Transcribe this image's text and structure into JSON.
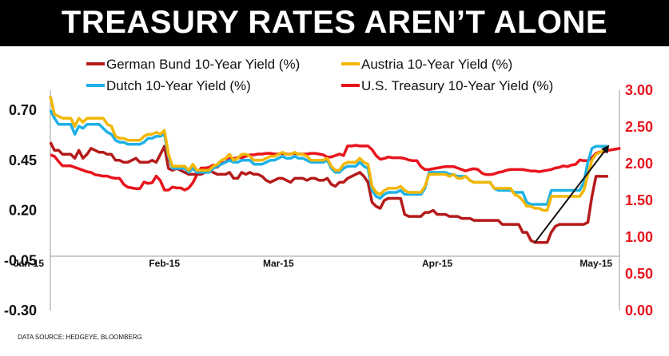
{
  "chart_data": {
    "type": "line",
    "title": "TREASURY RATES AREN’T ALONE",
    "source": "DATA SOURCE: HEDGEYE, BLOOMBERG",
    "x_ticks": [
      "Jan-15",
      "Feb-15",
      "Mar-15",
      "Apr-15",
      "May-15"
    ],
    "y_left": {
      "min": -0.3,
      "max": 0.8,
      "ticks": [
        "0.70",
        "0.45",
        "0.20",
        "-0.05",
        "-0.30"
      ]
    },
    "y_right": {
      "min": 0.0,
      "max": 3.0,
      "ticks": [
        "3.00",
        "2.50",
        "2.00",
        "1.50",
        "1.00",
        "0.50",
        "0.00"
      ]
    },
    "colors": {
      "bund": "#b51a1a",
      "austria": "#f2b705",
      "dutch": "#1fb1e6",
      "us": "#e8141c",
      "title_bg": "#000000",
      "right_axis": "#e8141c"
    },
    "series": [
      {
        "name": "German Bund 10-Year Yield (%)",
        "axis": "left",
        "color": "#b51a1a",
        "values": [
          0.54,
          0.5,
          0.5,
          0.48,
          0.48,
          0.48,
          0.46,
          0.5,
          0.46,
          0.48,
          0.51,
          0.5,
          0.49,
          0.49,
          0.48,
          0.48,
          0.45,
          0.45,
          0.44,
          0.44,
          0.45,
          0.46,
          0.44,
          0.44,
          0.44,
          0.45,
          0.44,
          0.48,
          0.52,
          0.41,
          0.4,
          0.41,
          0.4,
          0.39,
          0.38,
          0.38,
          0.38,
          0.38,
          0.39,
          0.4,
          0.39,
          0.38,
          0.38,
          0.38,
          0.39,
          0.36,
          0.36,
          0.39,
          0.38,
          0.39,
          0.38,
          0.38,
          0.37,
          0.35,
          0.34,
          0.35,
          0.36,
          0.36,
          0.35,
          0.34,
          0.36,
          0.36,
          0.36,
          0.35,
          0.36,
          0.36,
          0.35,
          0.35,
          0.36,
          0.33,
          0.32,
          0.34,
          0.34,
          0.36,
          0.37,
          0.38,
          0.39,
          0.37,
          0.34,
          0.24,
          0.22,
          0.21,
          0.25,
          0.26,
          0.26,
          0.26,
          0.26,
          0.18,
          0.17,
          0.17,
          0.17,
          0.17,
          0.19,
          0.19,
          0.2,
          0.18,
          0.18,
          0.18,
          0.17,
          0.17,
          0.17,
          0.16,
          0.16,
          0.16,
          0.15,
          0.15,
          0.15,
          0.15,
          0.15,
          0.15,
          0.15,
          0.13,
          0.13,
          0.13,
          0.13,
          0.13,
          0.09,
          0.09,
          0.05,
          0.04,
          0.04,
          0.04,
          0.04,
          0.09,
          0.12,
          0.13,
          0.13,
          0.13,
          0.13,
          0.13,
          0.13,
          0.13,
          0.14,
          0.27,
          0.37,
          0.37,
          0.37,
          0.37
        ]
      },
      {
        "name": "Austria 10-Year Yield (%)",
        "axis": "left",
        "color": "#f2b705",
        "values": [
          0.77,
          0.68,
          0.67,
          0.66,
          0.66,
          0.66,
          0.62,
          0.66,
          0.64,
          0.66,
          0.66,
          0.66,
          0.66,
          0.66,
          0.63,
          0.62,
          0.57,
          0.56,
          0.56,
          0.55,
          0.55,
          0.55,
          0.55,
          0.57,
          0.58,
          0.58,
          0.59,
          0.58,
          0.6,
          0.48,
          0.42,
          0.42,
          0.42,
          0.42,
          0.4,
          0.43,
          0.4,
          0.4,
          0.4,
          0.4,
          0.42,
          0.43,
          0.45,
          0.46,
          0.48,
          0.45,
          0.46,
          0.48,
          0.48,
          0.47,
          0.45,
          0.45,
          0.45,
          0.46,
          0.47,
          0.47,
          0.48,
          0.49,
          0.48,
          0.48,
          0.49,
          0.48,
          0.48,
          0.47,
          0.45,
          0.45,
          0.45,
          0.45,
          0.46,
          0.42,
          0.4,
          0.4,
          0.43,
          0.44,
          0.44,
          0.44,
          0.46,
          0.44,
          0.43,
          0.32,
          0.29,
          0.28,
          0.3,
          0.31,
          0.31,
          0.31,
          0.32,
          0.3,
          0.29,
          0.29,
          0.29,
          0.29,
          0.32,
          0.38,
          0.38,
          0.38,
          0.38,
          0.38,
          0.37,
          0.38,
          0.36,
          0.36,
          0.37,
          0.35,
          0.34,
          0.34,
          0.34,
          0.34,
          0.34,
          0.31,
          0.31,
          0.31,
          0.31,
          0.31,
          0.28,
          0.27,
          0.25,
          0.22,
          0.22,
          0.21,
          0.21,
          0.2,
          0.2,
          0.27,
          0.27,
          0.27,
          0.27,
          0.27,
          0.27,
          0.27,
          0.27,
          0.3,
          0.38,
          0.45,
          0.48,
          0.49,
          0.5,
          0.52
        ]
      },
      {
        "name": "Dutch 10-Year Yield (%)",
        "axis": "left",
        "color": "#1fb1e6",
        "values": [
          0.7,
          0.66,
          0.63,
          0.63,
          0.63,
          0.63,
          0.58,
          0.62,
          0.61,
          0.63,
          0.63,
          0.63,
          0.63,
          0.61,
          0.59,
          0.58,
          0.55,
          0.54,
          0.54,
          0.53,
          0.53,
          0.53,
          0.53,
          0.54,
          0.56,
          0.56,
          0.57,
          0.57,
          0.58,
          0.47,
          0.41,
          0.41,
          0.41,
          0.41,
          0.39,
          0.41,
          0.39,
          0.39,
          0.39,
          0.39,
          0.41,
          0.42,
          0.43,
          0.44,
          0.45,
          0.44,
          0.44,
          0.45,
          0.45,
          0.45,
          0.43,
          0.43,
          0.43,
          0.44,
          0.45,
          0.45,
          0.46,
          0.47,
          0.46,
          0.46,
          0.47,
          0.46,
          0.46,
          0.45,
          0.44,
          0.44,
          0.44,
          0.44,
          0.45,
          0.41,
          0.39,
          0.39,
          0.41,
          0.42,
          0.42,
          0.42,
          0.44,
          0.42,
          0.41,
          0.3,
          0.27,
          0.26,
          0.28,
          0.29,
          0.29,
          0.29,
          0.3,
          0.28,
          0.28,
          0.28,
          0.28,
          0.28,
          0.31,
          0.39,
          0.39,
          0.39,
          0.39,
          0.39,
          0.38,
          0.38,
          0.37,
          0.37,
          0.37,
          0.35,
          0.34,
          0.34,
          0.34,
          0.34,
          0.34,
          0.31,
          0.3,
          0.3,
          0.3,
          0.3,
          0.29,
          0.29,
          0.29,
          0.24,
          0.23,
          0.23,
          0.23,
          0.23,
          0.23,
          0.3,
          0.3,
          0.3,
          0.3,
          0.3,
          0.3,
          0.3,
          0.3,
          0.34,
          0.44,
          0.51,
          0.52,
          0.52,
          0.52,
          0.52
        ]
      },
      {
        "name": "U.S. Treasury 10-Year Yield (%)",
        "axis": "right",
        "color": "#e8141c",
        "values": [
          2.12,
          2.1,
          2.03,
          1.97,
          1.97,
          1.97,
          1.95,
          1.93,
          1.91,
          1.89,
          1.88,
          1.85,
          1.84,
          1.83,
          1.83,
          1.81,
          1.8,
          1.8,
          1.72,
          1.68,
          1.67,
          1.66,
          1.66,
          1.75,
          1.73,
          1.74,
          1.83,
          1.77,
          1.64,
          1.64,
          1.68,
          1.67,
          1.67,
          1.64,
          1.67,
          1.74,
          1.85,
          1.94,
          1.94,
          1.95,
          1.98,
          1.95,
          2.01,
          2.02,
          2.07,
          2.07,
          2.08,
          2.08,
          2.1,
          2.12,
          2.12,
          2.13,
          2.13,
          2.14,
          2.14,
          2.13,
          2.13,
          2.14,
          2.13,
          2.13,
          2.14,
          2.13,
          2.13,
          2.13,
          2.14,
          2.14,
          2.13,
          2.12,
          2.09,
          2.09,
          2.11,
          2.13,
          2.11,
          2.24,
          2.24,
          2.25,
          2.24,
          2.24,
          2.24,
          2.19,
          2.11,
          2.06,
          2.07,
          2.09,
          2.08,
          2.08,
          2.08,
          2.07,
          2.05,
          2.04,
          2.04,
          1.96,
          1.92,
          1.92,
          1.93,
          1.94,
          1.95,
          1.96,
          1.96,
          1.96,
          1.94,
          1.92,
          1.9,
          1.92,
          1.93,
          1.92,
          1.87,
          1.85,
          1.85,
          1.86,
          1.88,
          1.89,
          1.91,
          1.92,
          1.92,
          1.92,
          1.92,
          1.91,
          1.9,
          1.9,
          1.89,
          1.9,
          1.91,
          1.92,
          1.94,
          1.95,
          1.97,
          1.96,
          1.98,
          1.99,
          2.05,
          2.04,
          2.04,
          2.08,
          2.14,
          2.16,
          2.16,
          2.18,
          2.19,
          2.2,
          2.21
        ]
      }
    ],
    "annotation": {
      "type": "arrow",
      "from_index": 119,
      "from_value_left": 0.04,
      "to_index": 137,
      "to_value_left": 0.52
    }
  }
}
